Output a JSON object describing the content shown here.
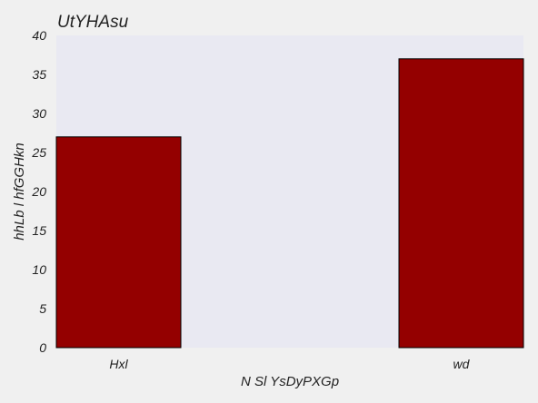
{
  "chart_data": {
    "type": "bar",
    "title": "UtYHAsu",
    "xlabel": "N Sl YsDyPXGp",
    "ylabel": "hhLb l hfGGHkn",
    "categories": [
      "Hxl",
      "wd"
    ],
    "values": [
      27,
      37
    ],
    "ylim": [
      0,
      40
    ],
    "yticks": [
      0,
      5,
      10,
      15,
      20,
      25,
      30,
      35,
      40
    ],
    "ytick_labels": [
      "0",
      "5",
      "10",
      "15",
      "20",
      "25",
      "30",
      "35",
      "40"
    ],
    "grid": false,
    "legend": "none",
    "colors": {
      "bar": "#940000",
      "bar_edge": "#000000",
      "plot_background": "#e9e9f2",
      "page_background": "#f0f0f0"
    }
  }
}
